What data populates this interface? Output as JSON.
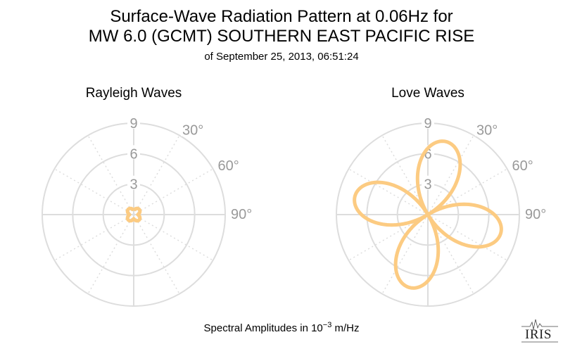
{
  "title_line1": "Surface-Wave Radiation Pattern at 0.06Hz for",
  "title_line2": "MW 6.0 (GCMT) SOUTHERN EAST PACIFIC RISE",
  "subtitle": "of September 25, 2013, 06:51:24",
  "caption_prefix": "Spectral Amplitudes in ",
  "caption_base": "10",
  "caption_exp": "−3",
  "caption_unit": " m/Hz",
  "logo_text": "IRIS",
  "colors": {
    "pattern": "#fccb82",
    "grid": "#dddddd",
    "label": "#999999"
  },
  "chart_data": [
    {
      "type": "polar-line",
      "title": "Rayleigh Waves",
      "radial_ticks": [
        3,
        6,
        9
      ],
      "rmax": 9,
      "angle_labels": [
        "30°",
        "60°",
        "90°"
      ],
      "pattern": {
        "shape": "four-lobe",
        "max_amplitude": 0.75,
        "lobe_azimuths_deg": [
          45,
          135,
          225,
          315
        ],
        "min_amplitude": 0.4
      }
    },
    {
      "type": "polar-line",
      "title": "Love Waves",
      "radial_ticks": [
        3,
        6,
        9
      ],
      "rmax": 9,
      "angle_labels": [
        "30°",
        "60°",
        "90°"
      ],
      "pattern": {
        "shape": "four-lobe",
        "max_amplitude": 7.4,
        "lobe_azimuths_deg": [
          14,
          104,
          194,
          284
        ]
      }
    }
  ]
}
